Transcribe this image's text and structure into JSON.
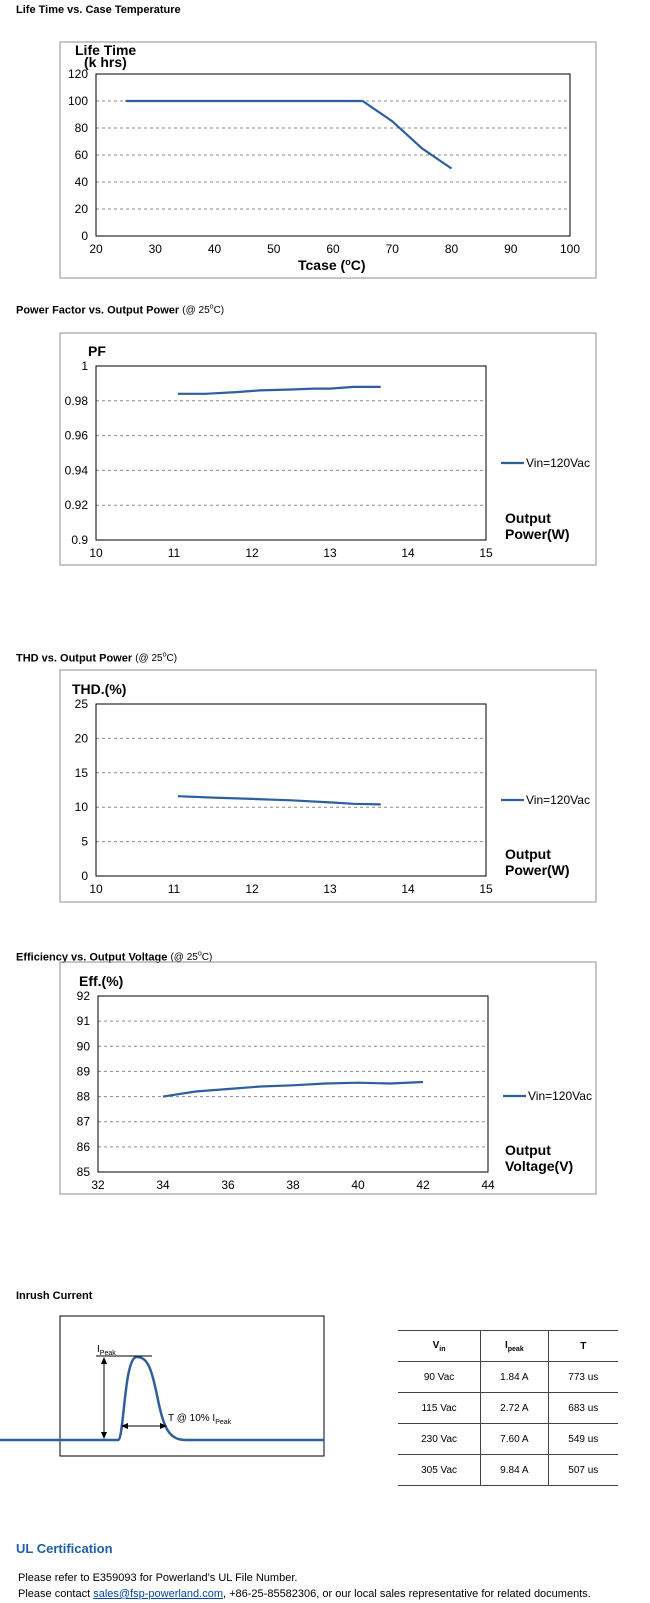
{
  "sections": {
    "life": {
      "title": "Life Time vs. Case Temperature"
    },
    "pf": {
      "title": "Power Factor vs. Output Power",
      "note": "(@ 25",
      "note_sup": "o",
      "note_end": "C)"
    },
    "thd": {
      "title": "THD vs. Output Power",
      "note": "(@ 25",
      "note_sup": "o",
      "note_end": "C)"
    },
    "eff": {
      "title": "Efficiency vs. Output Voltage",
      "note": "(@ 25",
      "note_sup": "o",
      "note_end": "C)"
    },
    "inrush": {
      "title": "Inrush Current"
    }
  },
  "colors": {
    "series": "#2f5f9e",
    "grid": "#8c8c8c",
    "frame": "#a0a0a0",
    "link": "#0645ad",
    "heading": "#1f5fa8"
  },
  "chart_data": [
    {
      "type": "line",
      "title": "",
      "ylabel": "Life Time",
      "ylabel2": "(k hrs)",
      "xlabel": "Tcase (",
      "xlabel_sup": "o",
      "xlabel_end": "C)",
      "xlim": [
        20,
        100
      ],
      "ylim": [
        0,
        120
      ],
      "xticks": [
        20,
        30,
        40,
        50,
        60,
        70,
        80,
        90,
        100
      ],
      "yticks": [
        0,
        20,
        40,
        60,
        80,
        100,
        120
      ],
      "grid": true,
      "series": [
        {
          "x": [
            25,
            65,
            70,
            75,
            80
          ],
          "y": [
            100,
            100,
            85,
            65,
            50
          ]
        }
      ]
    },
    {
      "type": "line",
      "ylabel": "PF",
      "xlabel": "Output",
      "xlabel2": "Power(W)",
      "xlim": [
        10,
        15
      ],
      "ylim": [
        0.9,
        1.0
      ],
      "xticks": [
        "10",
        "11",
        "12",
        "13",
        "14",
        "15"
      ],
      "yticks": [
        "0.9",
        "0.92",
        "0.94",
        "0.96",
        "0.98",
        "1"
      ],
      "grid": true,
      "legend": "right",
      "series": [
        {
          "name": "Vin=120Vac",
          "x": [
            11.05,
            11.4,
            11.8,
            12.1,
            12.5,
            12.8,
            13.0,
            13.3,
            13.65
          ],
          "y": [
            0.984,
            0.984,
            0.985,
            0.986,
            0.9865,
            0.987,
            0.987,
            0.988,
            0.988
          ]
        }
      ]
    },
    {
      "type": "line",
      "ylabel": "THD.(%)",
      "xlabel": "Output",
      "xlabel2": "Power(W)",
      "xlim": [
        10,
        15
      ],
      "ylim": [
        0,
        25
      ],
      "xticks": [
        "10",
        "11",
        "12",
        "13",
        "14",
        "15"
      ],
      "yticks": [
        "0",
        "5",
        "10",
        "15",
        "20",
        "25"
      ],
      "grid": true,
      "legend": "right",
      "series": [
        {
          "name": "Vin=120Vac",
          "x": [
            11.05,
            11.5,
            12.0,
            12.5,
            13.0,
            13.3,
            13.65
          ],
          "y": [
            11.6,
            11.4,
            11.2,
            11.0,
            10.7,
            10.5,
            10.4
          ]
        }
      ]
    },
    {
      "type": "line",
      "ylabel": "Eff.(%)",
      "xlabel": "Output",
      "xlabel2": "Voltage(V)",
      "xlim": [
        32,
        44
      ],
      "ylim": [
        85,
        92
      ],
      "xticks": [
        "32",
        "34",
        "36",
        "38",
        "40",
        "42",
        "44"
      ],
      "yticks": [
        "85",
        "86",
        "87",
        "88",
        "89",
        "90",
        "91",
        "92"
      ],
      "grid": true,
      "legend": "right",
      "series": [
        {
          "name": "Vin=120Vac",
          "x": [
            34,
            35,
            36,
            37,
            38,
            39,
            40,
            41,
            42
          ],
          "y": [
            88.0,
            88.2,
            88.3,
            88.4,
            88.45,
            88.52,
            88.55,
            88.52,
            88.58
          ]
        }
      ]
    }
  ],
  "inrush": {
    "diagram": {
      "ipeak": "I",
      "ipeak_sub": "Peak",
      "t_label": "T @ 10% I",
      "t_sub": "Peak"
    },
    "table": {
      "headers": [
        {
          "main": "V",
          "sub": "in"
        },
        {
          "main": "I",
          "sub": "peak"
        },
        {
          "main": "T",
          "sub": ""
        }
      ],
      "rows": [
        [
          "90 Vac",
          "1.84 A",
          "773 us"
        ],
        [
          "115 Vac",
          "2.72 A",
          "683 us"
        ],
        [
          "230 Vac",
          "7.60 A",
          "549 us"
        ],
        [
          "305 Vac",
          "9.84 A",
          "507 us"
        ]
      ]
    }
  },
  "ul": {
    "title": "UL Certification",
    "line1": "Please refer to E359093 for Powerland’s UL File Number.",
    "line2_pre": "Please contact ",
    "email": "sales@fsp-powerland.com",
    "line2_post": ", +86-25-85582306, or our local sales representative for related documents."
  }
}
